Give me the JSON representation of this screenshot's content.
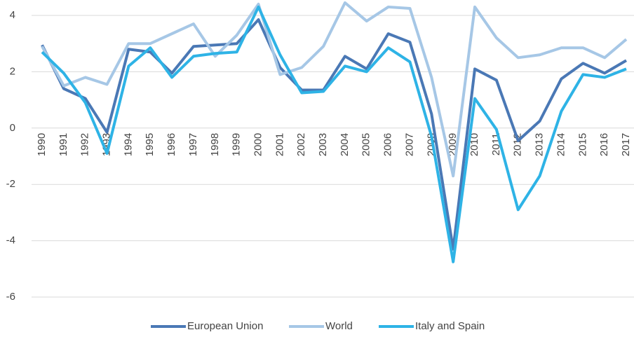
{
  "chart_data": {
    "type": "line",
    "categories": [
      "1990",
      "1991",
      "1992",
      "1993",
      "1994",
      "1995",
      "1996",
      "1997",
      "1998",
      "1999",
      "2000",
      "2001",
      "2002",
      "2003",
      "2004",
      "2005",
      "2006",
      "2007",
      "2008",
      "2009",
      "2010",
      "2011",
      "2012",
      "2013",
      "2014",
      "2015",
      "2016",
      "2017"
    ],
    "series": [
      {
        "name": "European Union",
        "color": "#4a78b5",
        "values": [
          2.95,
          1.4,
          1.05,
          -0.15,
          2.8,
          2.7,
          1.95,
          2.9,
          2.95,
          3.0,
          3.85,
          2.15,
          1.35,
          1.35,
          2.55,
          2.1,
          3.35,
          3.05,
          0.5,
          -4.3,
          2.1,
          1.7,
          -0.45,
          0.25,
          1.75,
          2.3,
          1.95,
          2.4
        ]
      },
      {
        "name": "World",
        "color": "#a6c7e6",
        "values": [
          2.9,
          1.5,
          1.8,
          1.55,
          3.0,
          3.0,
          3.35,
          3.7,
          2.55,
          3.3,
          4.4,
          1.9,
          2.15,
          2.9,
          4.45,
          3.8,
          4.3,
          4.25,
          1.8,
          -1.7,
          4.3,
          3.2,
          2.5,
          2.6,
          2.85,
          2.85,
          2.5,
          3.15
        ]
      },
      {
        "name": "Italy and Spain",
        "color": "#2eb3e6",
        "values": [
          2.7,
          1.95,
          0.9,
          -0.9,
          2.2,
          2.85,
          1.8,
          2.55,
          2.65,
          2.7,
          4.3,
          2.6,
          1.25,
          1.3,
          2.2,
          2.0,
          2.85,
          2.35,
          -0.3,
          -4.75,
          1.05,
          -0.05,
          -2.9,
          -1.7,
          0.6,
          1.9,
          1.8,
          2.1
        ]
      }
    ],
    "ylim": [
      -6,
      4
    ],
    "yticks": [
      -6,
      -4,
      -2,
      0,
      2,
      4
    ],
    "grid": true,
    "legend": "bottom"
  }
}
